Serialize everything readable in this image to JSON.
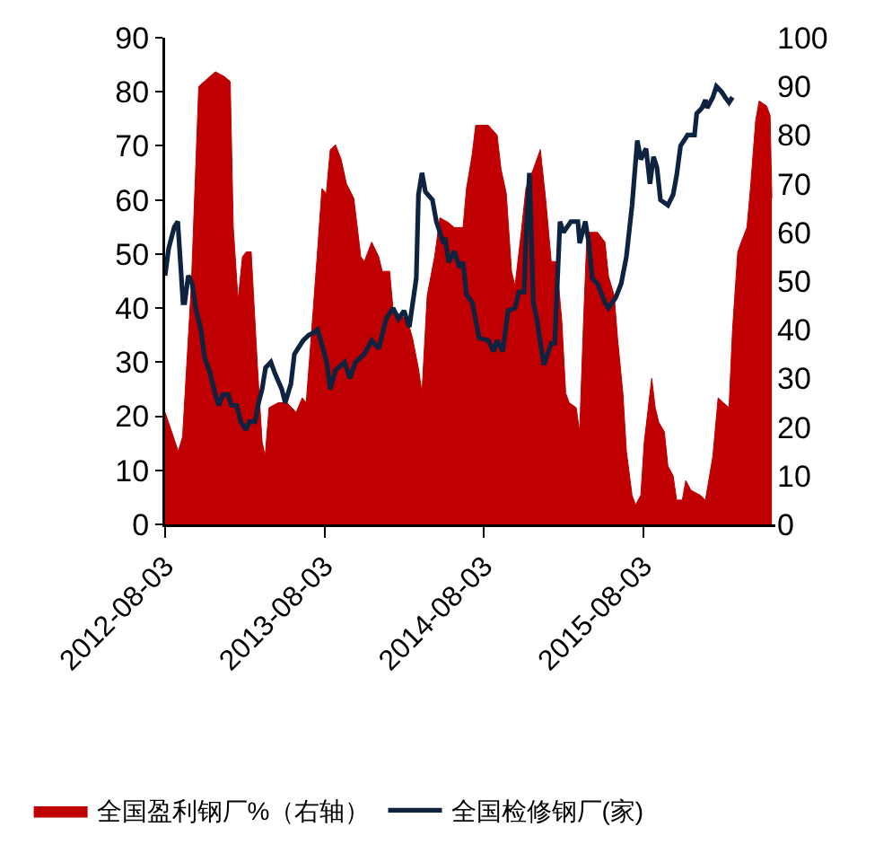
{
  "chart_data": {
    "type": "line",
    "legend": "bottom",
    "grid": false,
    "marker": "none",
    "line_style": "solid",
    "xlim": [
      "2012-08-03",
      "2016-05-31"
    ],
    "xticks": [
      "2012-08-03",
      "2013-08-03",
      "2014-08-03",
      "2015-08-03"
    ],
    "ylim": [
      0,
      90
    ],
    "yticks": [
      0,
      10,
      20,
      30,
      40,
      50,
      60,
      70,
      80,
      90
    ],
    "y2lim": [
      0,
      100
    ],
    "y2ticks": [
      0,
      10,
      20,
      30,
      40,
      50,
      60,
      70,
      80,
      90,
      100
    ],
    "series": [
      {
        "name": "全国盈利钢厂%（右轴）",
        "type": "area",
        "axis": "y2",
        "color": "#c00000",
        "x": [
          "2012-08-03",
          "2012-08-22",
          "2012-09-02",
          "2012-09-12",
          "2012-10-02",
          "2012-10-19",
          "2012-11-26",
          "2012-12-17",
          "2012-12-30",
          "2013-01-06",
          "2013-01-17",
          "2013-01-27",
          "2013-02-05",
          "2013-02-16",
          "2013-03-02",
          "2013-03-13",
          "2013-03-20",
          "2013-03-29",
          "2013-04-19",
          "2013-05-09",
          "2013-05-30",
          "2013-06-13",
          "2013-06-22",
          "2013-07-03",
          "2013-07-17",
          "2013-07-28",
          "2013-08-07",
          "2013-08-16",
          "2013-08-28",
          "2013-09-10",
          "2013-09-22",
          "2013-10-09",
          "2013-10-25",
          "2013-11-02",
          "2013-11-19",
          "2013-12-05",
          "2013-12-13",
          "2013-12-30",
          "2014-01-07",
          "2014-01-23",
          "2014-02-09",
          "2014-02-21",
          "2014-03-06",
          "2014-03-14",
          "2014-03-26",
          "2014-04-12",
          "2014-04-24",
          "2014-05-14",
          "2014-05-27",
          "2014-06-16",
          "2014-06-24",
          "2014-07-07",
          "2014-07-15",
          "2014-08-13",
          "2014-09-02",
          "2014-09-11",
          "2014-09-23",
          "2014-10-05",
          "2014-10-13",
          "2014-10-26",
          "2014-11-07",
          "2014-11-24",
          "2014-12-10",
          "2014-12-22",
          "2015-01-04",
          "2015-01-16",
          "2015-01-28",
          "2015-02-06",
          "2015-02-14",
          "2015-03-02",
          "2015-03-10",
          "2015-03-19",
          "2015-03-27",
          "2015-04-08",
          "2015-04-20",
          "2015-05-07",
          "2015-05-15",
          "2015-05-28",
          "2015-06-05",
          "2015-06-17",
          "2015-06-25",
          "2015-07-08",
          "2015-07-16",
          "2015-07-28",
          "2015-08-05",
          "2015-08-22",
          "2015-08-30",
          "2015-09-07",
          "2015-09-20",
          "2015-09-28",
          "2015-10-10",
          "2015-10-18",
          "2015-10-31",
          "2015-11-08",
          "2015-11-20",
          "2015-12-11",
          "2015-12-23",
          "2016-01-09",
          "2016-01-21",
          "2016-02-02",
          "2016-02-15",
          "2016-02-23",
          "2016-03-06",
          "2016-03-14",
          "2016-03-27",
          "2016-04-04",
          "2016-04-16",
          "2016-04-24",
          "2016-05-11",
          "2016-05-19",
          "2016-05-23"
        ],
        "values": [
          23,
          18,
          15,
          18,
          49,
          90,
          93,
          92,
          91,
          61,
          46,
          55,
          56,
          56,
          33,
          17,
          14,
          24,
          25,
          25,
          23,
          26,
          25,
          38,
          55,
          69,
          68,
          77,
          78,
          75,
          70,
          67,
          55,
          54,
          58,
          55,
          52,
          52,
          44,
          43,
          42,
          38,
          32,
          27,
          47,
          55,
          63,
          62,
          61,
          61,
          69,
          76,
          82,
          82,
          80,
          73,
          68,
          52,
          49,
          59,
          69,
          73,
          77,
          67,
          54,
          54,
          42,
          27,
          25,
          24,
          19,
          42,
          60,
          60,
          60,
          58,
          51,
          47,
          38,
          27,
          15,
          6,
          4,
          6,
          17,
          30,
          24,
          21,
          19,
          12,
          10,
          5,
          5,
          9,
          7,
          6,
          5,
          14,
          26,
          25,
          24,
          40,
          56,
          58,
          61,
          69,
          83,
          87,
          86,
          84,
          67
        ]
      },
      {
        "name": "全国检修钢厂(家)",
        "color": "#0d2340",
        "x": [
          "2012-08-03",
          "2012-08-11",
          "2012-08-24",
          "2012-09-01",
          "2012-09-13",
          "2012-09-17",
          "2012-09-25",
          "2012-10-04",
          "2012-10-12",
          "2012-10-24",
          "2012-11-01",
          "2012-11-14",
          "2012-11-26",
          "2012-12-04",
          "2012-12-13",
          "2012-12-25",
          "2013-01-02",
          "2013-01-14",
          "2013-01-23",
          "2013-02-04",
          "2013-02-12",
          "2013-02-25",
          "2013-03-05",
          "2013-03-13",
          "2013-03-21",
          "2013-04-02",
          "2013-04-11",
          "2013-04-27",
          "2013-05-05",
          "2013-05-18",
          "2013-05-26",
          "2013-06-07",
          "2013-06-15",
          "2013-06-28",
          "2013-07-10",
          "2013-07-18",
          "2013-07-27",
          "2013-08-08",
          "2013-08-16",
          "2013-08-28",
          "2013-09-18",
          "2013-09-30",
          "2013-10-13",
          "2013-11-02",
          "2013-11-19",
          "2013-12-05",
          "2013-12-22",
          "2014-01-07",
          "2014-01-19",
          "2014-02-01",
          "2014-02-13",
          "2014-03-01",
          "2014-03-06",
          "2014-03-14",
          "2014-03-22",
          "2014-04-07",
          "2014-04-16",
          "2014-05-02",
          "2014-05-06",
          "2014-05-14",
          "2014-05-27",
          "2014-06-08",
          "2014-06-16",
          "2014-06-24",
          "2014-07-07",
          "2014-07-23",
          "2014-08-13",
          "2014-08-25",
          "2014-09-02",
          "2014-09-15",
          "2014-09-27",
          "2014-10-13",
          "2014-10-22",
          "2014-11-03",
          "2014-11-07",
          "2014-11-15",
          "2014-11-24",
          "2014-12-02",
          "2014-12-18",
          "2015-01-04",
          "2015-01-12",
          "2015-01-24",
          "2015-02-01",
          "2015-02-18",
          "2015-03-06",
          "2015-03-10",
          "2015-03-23",
          "2015-03-31",
          "2015-04-08",
          "2015-04-20",
          "2015-05-07",
          "2015-05-15",
          "2015-06-01",
          "2015-06-13",
          "2015-06-25",
          "2015-07-08",
          "2015-07-20",
          "2015-07-28",
          "2015-08-09",
          "2015-08-18",
          "2015-08-26",
          "2015-09-03",
          "2015-09-11",
          "2015-09-28",
          "2015-10-10",
          "2015-10-18",
          "2015-10-27",
          "2015-11-12",
          "2015-11-28",
          "2015-12-03",
          "2015-12-15",
          "2015-12-23",
          "2015-12-27",
          "2016-01-09",
          "2016-01-17",
          "2016-01-29",
          "2016-02-06",
          "2016-02-15",
          "2016-02-23"
        ],
        "values": [
          46,
          51,
          55,
          56,
          41,
          41,
          46,
          44.5,
          40,
          36,
          31,
          28,
          24,
          22,
          24,
          24,
          22,
          22,
          19,
          17.5,
          19,
          19,
          22.5,
          25,
          29,
          30,
          28,
          25,
          22.5,
          26,
          31.5,
          33,
          34,
          35,
          35.5,
          36,
          33.5,
          30,
          25,
          28.5,
          30,
          27,
          30,
          31.5,
          34,
          32.5,
          38,
          40,
          38,
          39.5,
          36.5,
          45.5,
          61,
          65,
          61.5,
          60,
          56,
          52,
          53,
          48.5,
          50.5,
          47.5,
          48.5,
          42.5,
          41,
          34.5,
          34,
          32,
          34,
          32,
          39.5,
          40,
          43,
          43,
          53,
          65,
          41,
          38,
          29.5,
          33.5,
          33.5,
          56,
          54,
          56,
          56,
          52,
          56,
          52,
          45.5,
          44.5,
          41,
          40,
          42,
          44.5,
          49.5,
          59,
          71,
          67.5,
          69.5,
          63,
          68,
          66,
          60,
          59,
          61,
          64.5,
          70,
          72,
          72,
          76,
          77,
          78.5,
          77,
          79,
          81,
          80,
          79,
          78,
          79
        ]
      }
    ]
  }
}
